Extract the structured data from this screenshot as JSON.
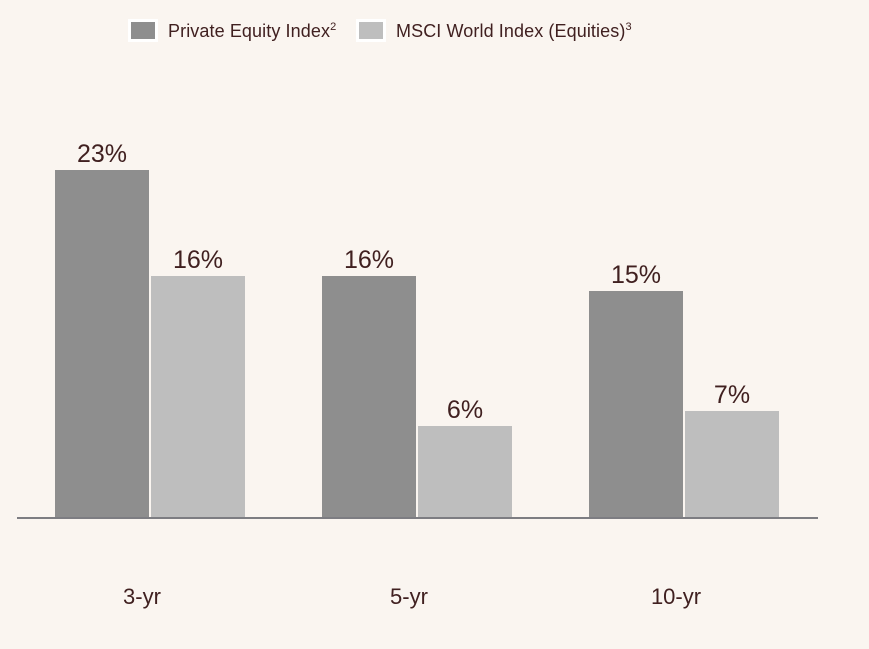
{
  "colors": {
    "background": "#FAF5F0",
    "text": "#402020",
    "axis_line": "#7D7D82",
    "series_private_equity": "#8E8E8E",
    "series_msci_world": "#BEBEBE",
    "legend_swatch_border": "#FFFFFF"
  },
  "chart_data": {
    "type": "bar",
    "categories": [
      "3-yr",
      "5-yr",
      "10-yr"
    ],
    "series": [
      {
        "name": "Private Equity Index",
        "superscript": "2",
        "color": "#8E8E8E",
        "values": [
          23,
          16,
          15
        ],
        "labels": [
          "23%",
          "16%",
          "15%"
        ]
      },
      {
        "name": "MSCI World Index (Equities)",
        "superscript": "3",
        "color": "#BEBEBE",
        "values": [
          16,
          6,
          7
        ],
        "labels": [
          "16%",
          "6%",
          "7%"
        ]
      }
    ],
    "value_suffix": "%",
    "ylim": [
      0,
      23
    ],
    "grid": false,
    "y_axis_visible": false,
    "legend_position": "top",
    "data_labels": true
  }
}
